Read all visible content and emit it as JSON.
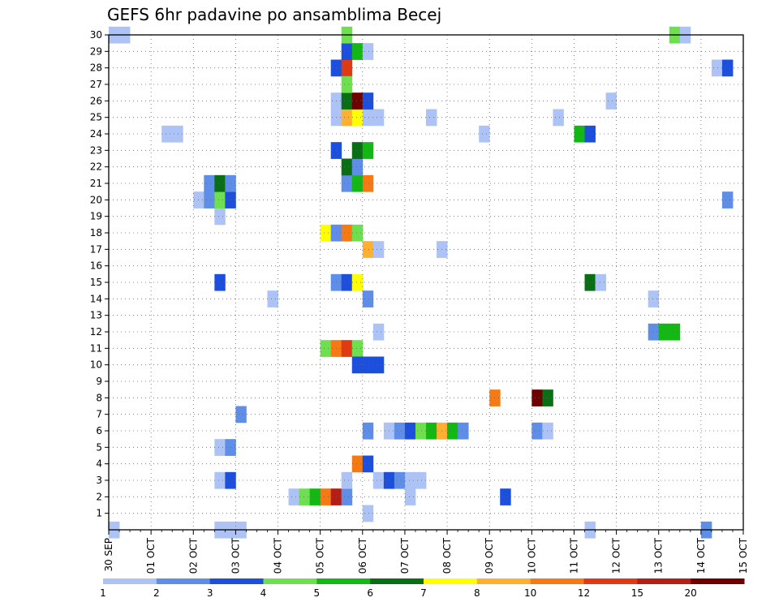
{
  "chart_data": {
    "type": "heatmap",
    "title": "GEFS 6hr padavine po ansamblima Becej",
    "x_tick_labels": [
      "30 SEP",
      "01 OCT",
      "02 OCT",
      "03 OCT",
      "04 OCT",
      "05 OCT",
      "06 OCT",
      "07 OCT",
      "08 OCT",
      "09 OCT",
      "10 OCT",
      "11 OCT",
      "12 OCT",
      "13 OCT",
      "14 OCT",
      "15 OCT"
    ],
    "y_tick_labels": [
      "1",
      "2",
      "3",
      "4",
      "5",
      "6",
      "7",
      "8",
      "9",
      "10",
      "11",
      "12",
      "13",
      "14",
      "15",
      "16",
      "17",
      "18",
      "19",
      "20",
      "21",
      "22",
      "23",
      "24",
      "25",
      "26",
      "27",
      "28",
      "29",
      "30"
    ],
    "x_unit": "6-hour step from 30 SEP 00Z",
    "xlim": [
      0,
      60
    ],
    "ylim": [
      0,
      30
    ],
    "grid": true,
    "colorbar": {
      "labels": [
        "1",
        "2",
        "3",
        "4",
        "5",
        "6",
        "7",
        "8",
        "10",
        "12",
        "15",
        "20"
      ],
      "colors": [
        "#adc3f5",
        "#5f8ee8",
        "#1c4fdc",
        "#6ee050",
        "#14b814",
        "#0a6e14",
        "#ffff00",
        "#ffb030",
        "#f57a14",
        "#e03a14",
        "#b41e14",
        "#6e0000"
      ]
    },
    "cells": [
      {
        "step": 0,
        "member": 0,
        "level": 0
      },
      {
        "step": 0,
        "member": 30,
        "level": 0
      },
      {
        "step": 1,
        "member": 30,
        "level": 0
      },
      {
        "step": 10,
        "member": 0,
        "level": 0
      },
      {
        "step": 11,
        "member": 0,
        "level": 0
      },
      {
        "step": 12,
        "member": 0,
        "level": 0
      },
      {
        "step": 12,
        "member": 7,
        "level": 1
      },
      {
        "step": 10,
        "member": 5,
        "level": 0
      },
      {
        "step": 11,
        "member": 5,
        "level": 1
      },
      {
        "step": 10,
        "member": 3,
        "level": 0
      },
      {
        "step": 11,
        "member": 3,
        "level": 2
      },
      {
        "step": 10,
        "member": 19,
        "level": 0
      },
      {
        "step": 10,
        "member": 15,
        "level": 2
      },
      {
        "step": 8,
        "member": 20,
        "level": 0
      },
      {
        "step": 9,
        "member": 20,
        "level": 1
      },
      {
        "step": 10,
        "member": 20,
        "level": 3
      },
      {
        "step": 11,
        "member": 20,
        "level": 2
      },
      {
        "step": 9,
        "member": 21,
        "level": 1
      },
      {
        "step": 10,
        "member": 21,
        "level": 5
      },
      {
        "step": 11,
        "member": 21,
        "level": 1
      },
      {
        "step": 5,
        "member": 24,
        "level": 0
      },
      {
        "step": 6,
        "member": 24,
        "level": 0
      },
      {
        "step": 15,
        "member": 14,
        "level": 0
      },
      {
        "step": 17,
        "member": 2,
        "level": 0
      },
      {
        "step": 18,
        "member": 2,
        "level": 3
      },
      {
        "step": 19,
        "member": 2,
        "level": 4
      },
      {
        "step": 20,
        "member": 2,
        "level": 8
      },
      {
        "step": 21,
        "member": 2,
        "level": 10
      },
      {
        "step": 22,
        "member": 2,
        "level": 1
      },
      {
        "step": 20,
        "member": 11,
        "level": 3
      },
      {
        "step": 21,
        "member": 11,
        "level": 8
      },
      {
        "step": 22,
        "member": 11,
        "level": 9
      },
      {
        "step": 23,
        "member": 11,
        "level": 3
      },
      {
        "step": 20,
        "member": 18,
        "level": 6
      },
      {
        "step": 21,
        "member": 18,
        "level": 1
      },
      {
        "step": 22,
        "member": 18,
        "level": 8
      },
      {
        "step": 23,
        "member": 18,
        "level": 3
      },
      {
        "step": 21,
        "member": 15,
        "level": 1
      },
      {
        "step": 22,
        "member": 15,
        "level": 2
      },
      {
        "step": 23,
        "member": 15,
        "level": 6
      },
      {
        "step": 21,
        "member": 23,
        "level": 2
      },
      {
        "step": 21,
        "member": 25,
        "level": 0
      },
      {
        "step": 22,
        "member": 25,
        "level": 7
      },
      {
        "step": 23,
        "member": 25,
        "level": 6
      },
      {
        "step": 24,
        "member": 25,
        "level": 0
      },
      {
        "step": 25,
        "member": 25,
        "level": 0
      },
      {
        "step": 21,
        "member": 26,
        "level": 0
      },
      {
        "step": 22,
        "member": 26,
        "level": 5
      },
      {
        "step": 23,
        "member": 26,
        "level": 11
      },
      {
        "step": 24,
        "member": 26,
        "level": 2
      },
      {
        "step": 21,
        "member": 28,
        "level": 2
      },
      {
        "step": 22,
        "member": 28,
        "level": 9
      },
      {
        "step": 22,
        "member": 21,
        "level": 1
      },
      {
        "step": 23,
        "member": 21,
        "level": 4
      },
      {
        "step": 24,
        "member": 21,
        "level": 8
      },
      {
        "step": 22,
        "member": 22,
        "level": 5
      },
      {
        "step": 23,
        "member": 22,
        "level": 1
      },
      {
        "step": 23,
        "member": 23,
        "level": 5
      },
      {
        "step": 24,
        "member": 23,
        "level": 4
      },
      {
        "step": 22,
        "member": 27,
        "level": 3
      },
      {
        "step": 22,
        "member": 29,
        "level": 2
      },
      {
        "step": 23,
        "member": 29,
        "level": 4
      },
      {
        "step": 24,
        "member": 29,
        "level": 0
      },
      {
        "step": 22,
        "member": 30,
        "level": 3
      },
      {
        "step": 22,
        "member": 3,
        "level": 0
      },
      {
        "step": 23,
        "member": 4,
        "level": 8
      },
      {
        "step": 24,
        "member": 4,
        "level": 2
      },
      {
        "step": 24,
        "member": 6,
        "level": 1
      },
      {
        "step": 23,
        "member": 10,
        "level": 2
      },
      {
        "step": 24,
        "member": 10,
        "level": 2
      },
      {
        "step": 25,
        "member": 10,
        "level": 2
      },
      {
        "step": 24,
        "member": 14,
        "level": 1
      },
      {
        "step": 24,
        "member": 1,
        "level": 0
      },
      {
        "step": 25,
        "member": 12,
        "level": 0
      },
      {
        "step": 24,
        "member": 17,
        "level": 7
      },
      {
        "step": 25,
        "member": 17,
        "level": 0
      },
      {
        "step": 25,
        "member": 3,
        "level": 0
      },
      {
        "step": 26,
        "member": 3,
        "level": 2
      },
      {
        "step": 27,
        "member": 3,
        "level": 1
      },
      {
        "step": 28,
        "member": 3,
        "level": 0
      },
      {
        "step": 28,
        "member": 2,
        "level": 0
      },
      {
        "step": 29,
        "member": 3,
        "level": 0
      },
      {
        "step": 26,
        "member": 6,
        "level": 0
      },
      {
        "step": 27,
        "member": 6,
        "level": 1
      },
      {
        "step": 28,
        "member": 6,
        "level": 2
      },
      {
        "step": 29,
        "member": 6,
        "level": 3
      },
      {
        "step": 30,
        "member": 6,
        "level": 4
      },
      {
        "step": 31,
        "member": 6,
        "level": 7
      },
      {
        "step": 32,
        "member": 6,
        "level": 4
      },
      {
        "step": 33,
        "member": 6,
        "level": 1
      },
      {
        "step": 30,
        "member": 25,
        "level": 0
      },
      {
        "step": 31,
        "member": 17,
        "level": 0
      },
      {
        "step": 36,
        "member": 8,
        "level": 8
      },
      {
        "step": 35,
        "member": 24,
        "level": 0
      },
      {
        "step": 37,
        "member": 2,
        "level": 2
      },
      {
        "step": 40,
        "member": 6,
        "level": 1
      },
      {
        "step": 41,
        "member": 6,
        "level": 0
      },
      {
        "step": 40,
        "member": 8,
        "level": 11
      },
      {
        "step": 41,
        "member": 8,
        "level": 5
      },
      {
        "step": 42,
        "member": 25,
        "level": 0
      },
      {
        "step": 44,
        "member": 24,
        "level": 4
      },
      {
        "step": 45,
        "member": 24,
        "level": 2
      },
      {
        "step": 45,
        "member": 15,
        "level": 5
      },
      {
        "step": 46,
        "member": 15,
        "level": 0
      },
      {
        "step": 45,
        "member": 0,
        "level": 0
      },
      {
        "step": 47,
        "member": 26,
        "level": 0
      },
      {
        "step": 51,
        "member": 12,
        "level": 1
      },
      {
        "step": 52,
        "member": 12,
        "level": 4
      },
      {
        "step": 53,
        "member": 12,
        "level": 4
      },
      {
        "step": 51,
        "member": 14,
        "level": 0
      },
      {
        "step": 53,
        "member": 30,
        "level": 3
      },
      {
        "step": 54,
        "member": 30,
        "level": 0
      },
      {
        "step": 56,
        "member": 0,
        "level": 1
      },
      {
        "step": 57,
        "member": 28,
        "level": 0
      },
      {
        "step": 58,
        "member": 28,
        "level": 2
      },
      {
        "step": 58,
        "member": 20,
        "level": 1
      }
    ]
  }
}
